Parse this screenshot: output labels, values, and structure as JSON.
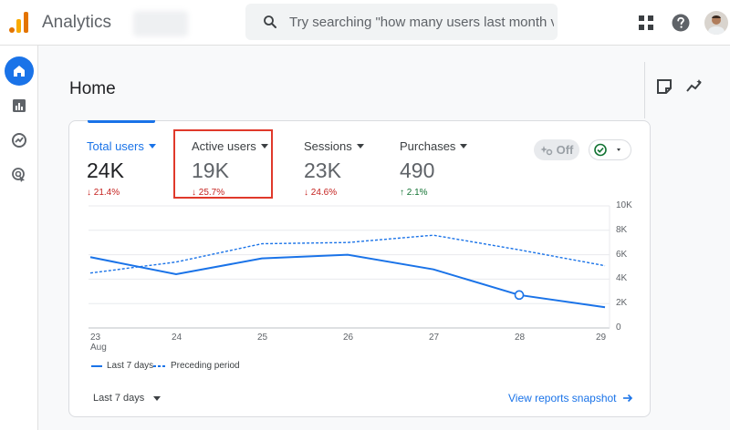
{
  "app": {
    "title": "Analytics"
  },
  "search": {
    "placeholder": "Try searching \"how many users last month vs..."
  },
  "page": {
    "title": "Home"
  },
  "metrics": [
    {
      "label": "Total users",
      "value": "24K",
      "change": "21.4%",
      "direction": "down"
    },
    {
      "label": "Active users",
      "value": "19K",
      "change": "25.7%",
      "direction": "down"
    },
    {
      "label": "Sessions",
      "value": "23K",
      "change": "24.6%",
      "direction": "down"
    },
    {
      "label": "Purchases",
      "value": "490",
      "change": "2.1%",
      "direction": "up"
    }
  ],
  "toggle": {
    "label": "Off"
  },
  "colors": {
    "accent": "#1a73e8",
    "down": "#c5221f",
    "up": "#137333",
    "highlight": "#e0392b"
  },
  "chart_data": {
    "type": "line",
    "x": [
      "23",
      "24",
      "25",
      "26",
      "27",
      "28",
      "29"
    ],
    "x_sublabel": "Aug",
    "yticks": [
      "10K",
      "8K",
      "6K",
      "4K",
      "2K",
      "0"
    ],
    "ylim": [
      0,
      10000
    ],
    "series": [
      {
        "name": "Last 7 days",
        "style": "solid",
        "values": [
          5800,
          4400,
          5700,
          6000,
          4800,
          2700,
          1700
        ]
      },
      {
        "name": "Preceding period",
        "style": "dashed",
        "values": [
          4500,
          5400,
          6900,
          7000,
          7600,
          6400,
          5100
        ]
      }
    ],
    "highlight_point_index": 5
  },
  "footer": {
    "range": "Last 7 days",
    "link": "View reports snapshot"
  }
}
